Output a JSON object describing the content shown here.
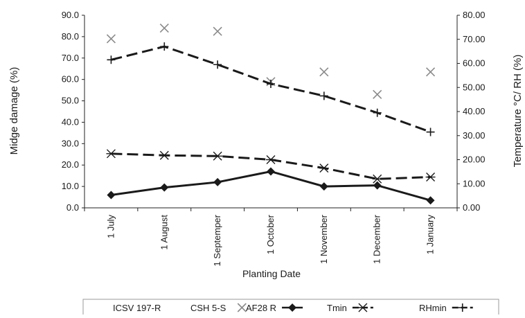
{
  "chart_data": {
    "type": "line",
    "title": "",
    "xlabel": "Planting Date",
    "ylabel_left": "Midge damage (%)",
    "ylabel_right": "Temperature °C/ RH (%)",
    "categories": [
      "1 July",
      "1 August",
      "1 Septemper",
      "1 October",
      "1 November",
      "1 December",
      "1 January"
    ],
    "ylim_left": [
      0,
      90
    ],
    "ylim_right": [
      0,
      80
    ],
    "yticks_left": [
      "0.0",
      "10.0",
      "20.0",
      "30.0",
      "40.0",
      "50.0",
      "60.0",
      "70.0",
      "80.0",
      "90.0"
    ],
    "yticks_right": [
      "0.00",
      "10.00",
      "20.00",
      "30.00",
      "40.00",
      "50.00",
      "60.00",
      "70.00",
      "80.00"
    ],
    "grid": false,
    "legend_position": "bottom",
    "series": [
      {
        "name": "ICSV 197-R",
        "axis": "left",
        "marker": "none",
        "line": "none",
        "color": "#ffffff",
        "values": [
          0,
          0,
          0,
          0,
          0,
          0,
          0
        ]
      },
      {
        "name": "CSH 5-S",
        "axis": "left",
        "marker": "x",
        "line": "none",
        "color": "#8a8a8a",
        "values": [
          79.0,
          84.0,
          82.5,
          59.0,
          63.5,
          53.0,
          63.5
        ]
      },
      {
        "name": "AF28 R",
        "axis": "left",
        "marker": "diamond",
        "line": "solid",
        "color": "#1a1a1a",
        "values": [
          6.0,
          9.5,
          12.0,
          17.0,
          10.0,
          10.5,
          3.5
        ]
      },
      {
        "name": "Tmin",
        "axis": "right",
        "marker": "asterisk",
        "line": "dashed",
        "color": "#1a1a1a",
        "values": [
          22.5,
          21.8,
          21.5,
          20.0,
          16.5,
          12.0,
          12.8
        ]
      },
      {
        "name": "RHmin",
        "axis": "right",
        "marker": "plus",
        "line": "dashed",
        "color": "#1a1a1a",
        "values": [
          61.5,
          67.0,
          59.5,
          51.5,
          46.5,
          39.5,
          31.5
        ]
      }
    ]
  }
}
